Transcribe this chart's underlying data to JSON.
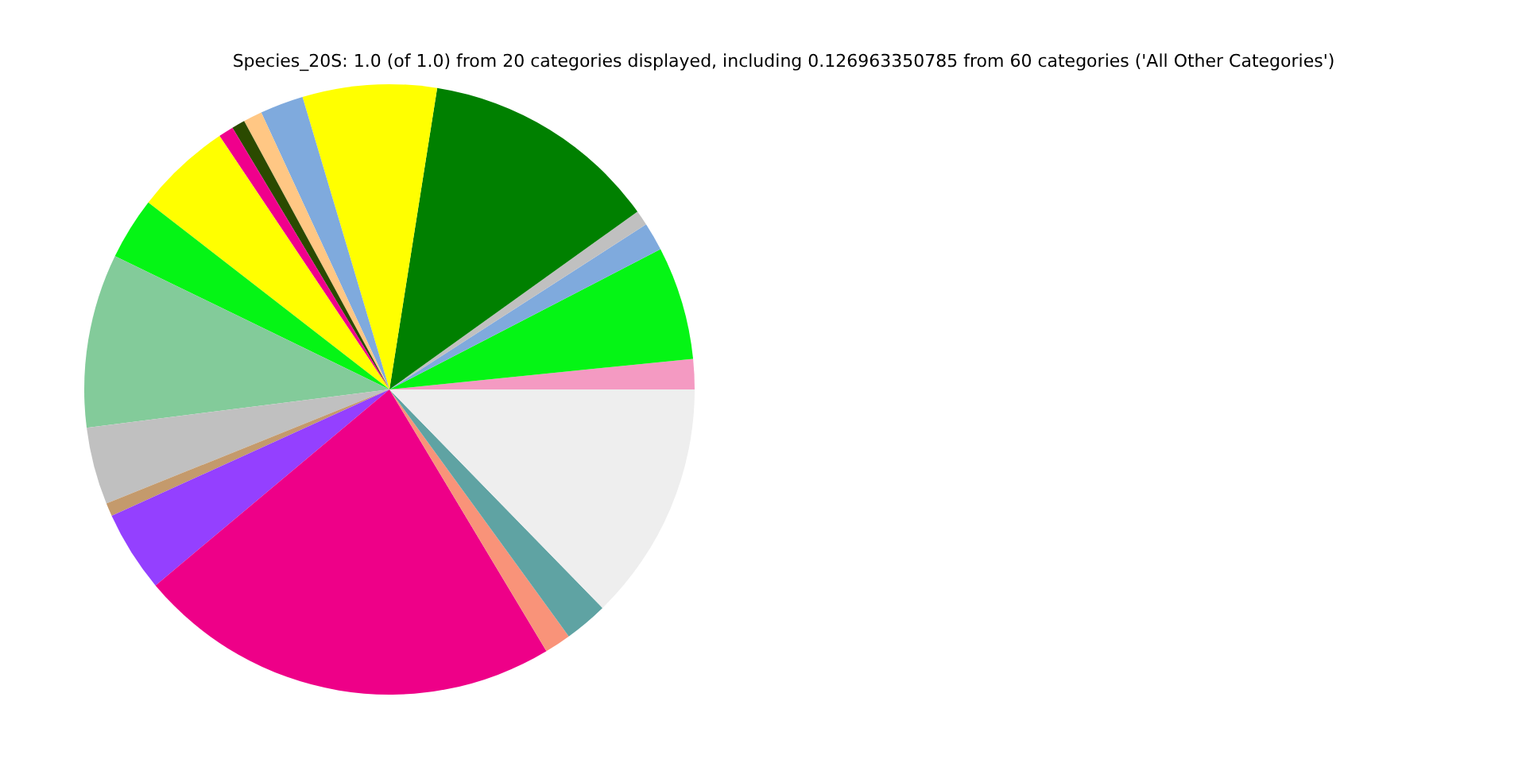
{
  "chart_data": {
    "type": "pie",
    "title": "Species_20S: 1.0 (of 1.0) from 20 categories displayed, including 0.126963350785 from 60 categories ('All Other Categories')",
    "categories": [
      null,
      null,
      null,
      null,
      null,
      null,
      null,
      null,
      null,
      null,
      null,
      null,
      null,
      null,
      null,
      null,
      null,
      null,
      null,
      null
    ],
    "values": [
      1.6,
      6.0,
      1.5,
      0.8,
      12.6,
      7.1,
      2.3,
      1.0,
      0.7,
      0.8,
      5.1,
      3.3,
      9.2,
      4.1,
      0.7,
      4.3,
      22.5,
      1.4,
      2.3,
      12.7
    ],
    "colors": [
      "#f49ac2",
      "#05f515",
      "#7faadd",
      "#c0c0c0",
      "#008000",
      "#ffff00",
      "#7faadd",
      "#ffc784",
      "#2b4a00",
      "#f0008c",
      "#ffff00",
      "#05f515",
      "#83cb9a",
      "#c0c0c0",
      "#c49a6c",
      "#9440ff",
      "#ee0088",
      "#f99379",
      "#5fa3a3",
      "#eeeeee"
    ],
    "legend": false
  }
}
